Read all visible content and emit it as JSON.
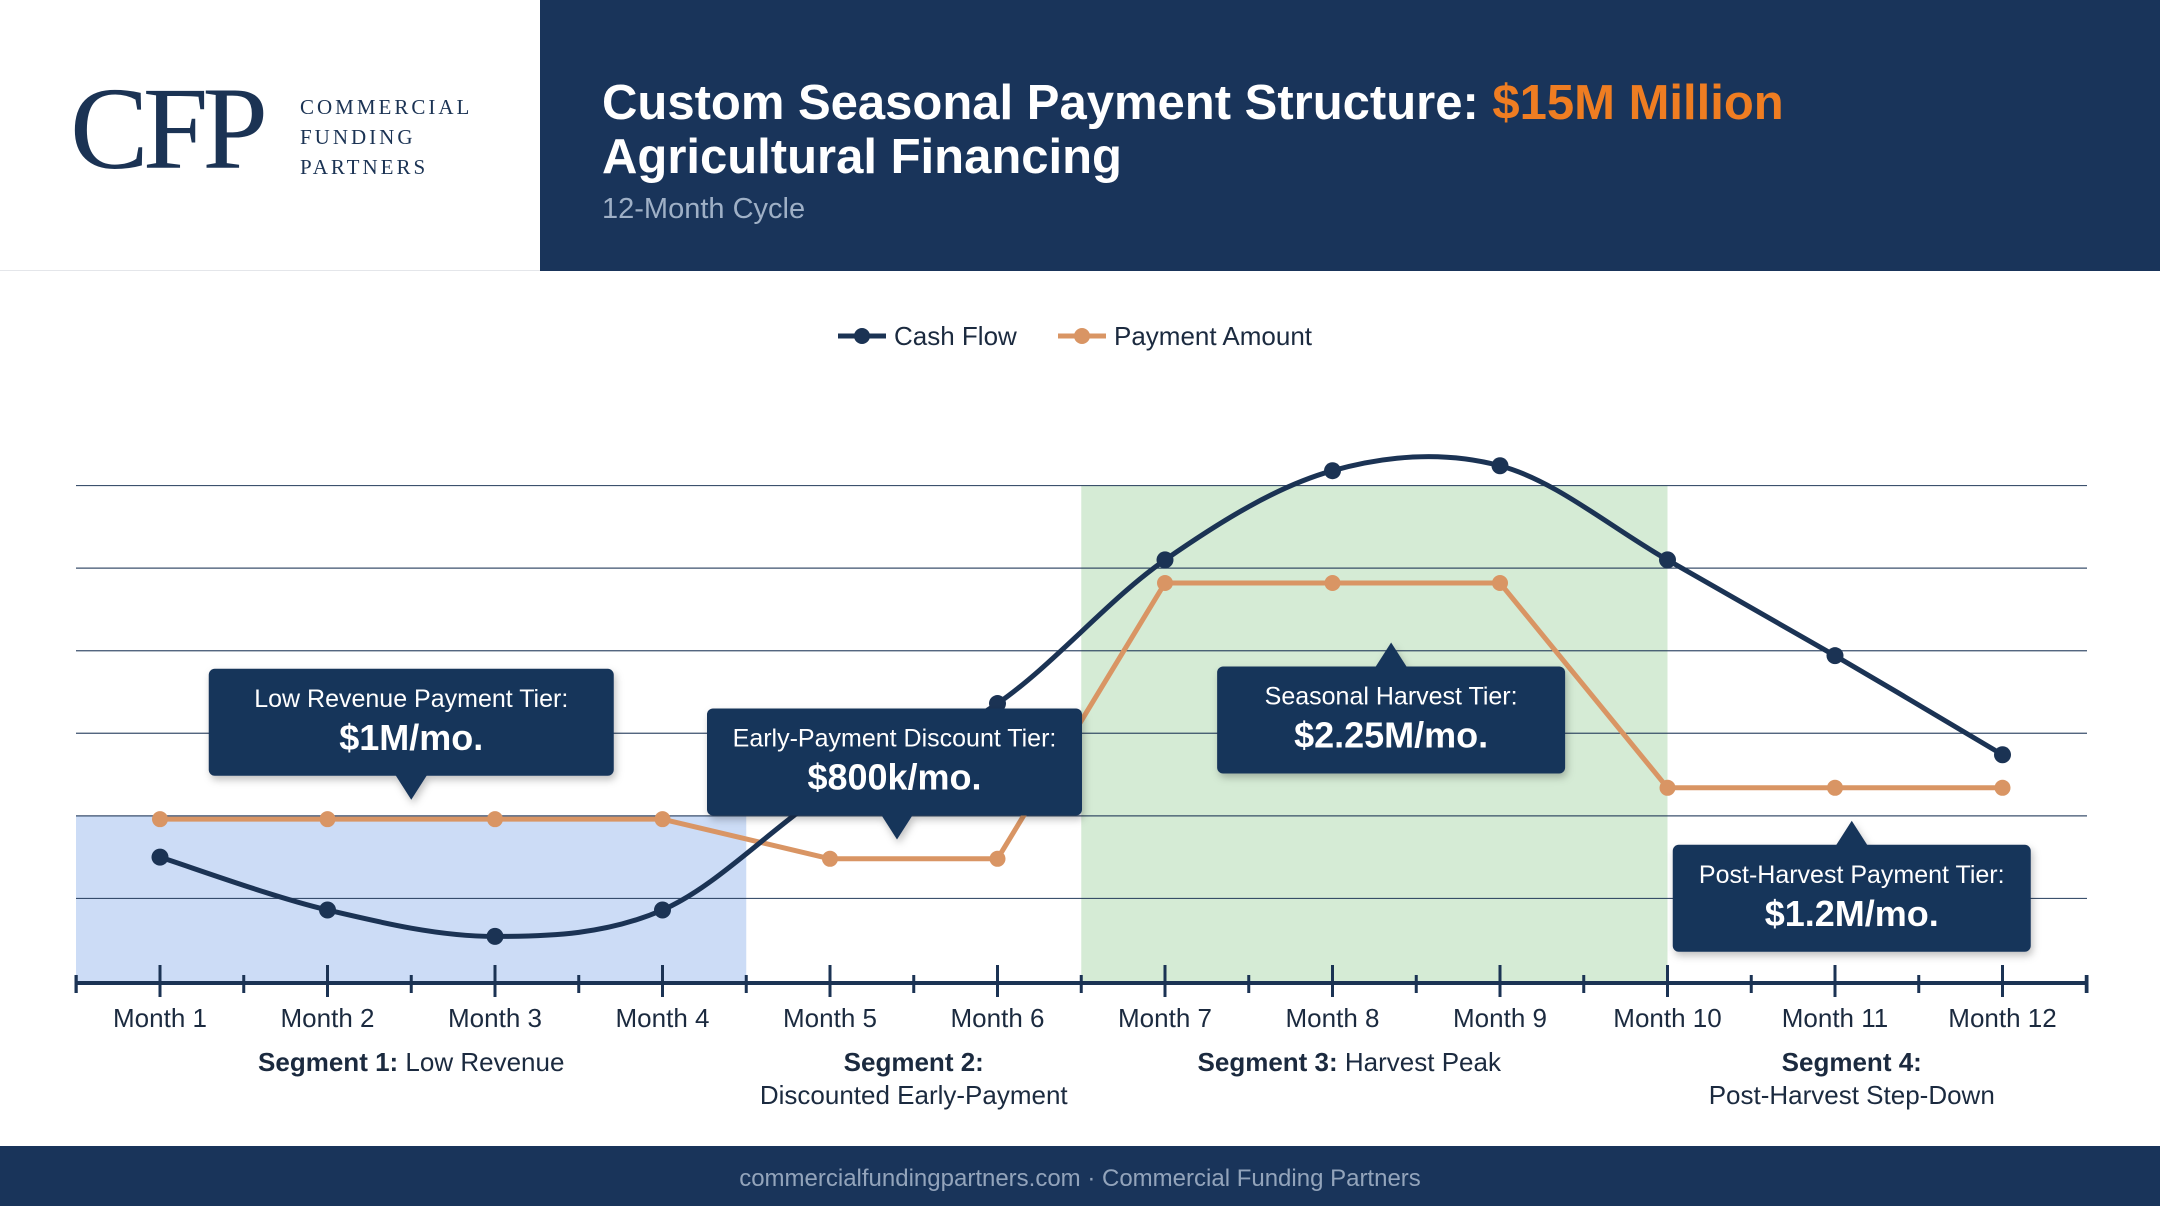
{
  "brand": {
    "monogram": "CFP",
    "name_lines": [
      "COMMERCIAL",
      "FUNDING",
      "PARTNERS"
    ]
  },
  "header": {
    "title_part1": "Custom Seasonal Payment Structure: ",
    "title_accent": "$15M Million",
    "title_part2": "Agricultural Financing",
    "subtitle": "12-Month Cycle"
  },
  "colors": {
    "navy": "#19345a",
    "accent": "#ef7d22",
    "cash_flow": "#1b3354",
    "payment": "#d99564",
    "segment1_band": "#ccdcf6",
    "segment3_band": "#d5ebd5"
  },
  "chart_data": {
    "type": "line",
    "categories": [
      "Month 1",
      "Month 2",
      "Month 3",
      "Month 4",
      "Month 5",
      "Month 6",
      "Month 7",
      "Month 8",
      "Month 9",
      "Month 10",
      "Month 11",
      "Month 12"
    ],
    "series": [
      {
        "name": "Cash Flow",
        "values": [
          1.75,
          1.43,
          1.27,
          1.43,
          null,
          2.68,
          3.55,
          4.09,
          4.12,
          3.55,
          2.97,
          2.37
        ],
        "smooth": true
      },
      {
        "name": "Payment Amount",
        "values": [
          1.98,
          1.98,
          1.98,
          1.98,
          1.74,
          1.74,
          3.41,
          3.41,
          3.41,
          2.17,
          2.17,
          2.17
        ]
      }
    ],
    "ylim": [
      1.0,
      4.5
    ],
    "gridlines": [
      1.0,
      1.5,
      2.0,
      2.5,
      3.0,
      3.5,
      4.0
    ],
    "grid": true,
    "legend": "top-center",
    "bands": [
      {
        "from": 0.5,
        "to": 4.5,
        "top": 2.0,
        "color_key": "segment1_band"
      },
      {
        "from": 6.5,
        "to": 10.0,
        "top": 4.0,
        "color_key": "segment3_band"
      }
    ],
    "segments": [
      {
        "bold": "Segment 1:",
        "text": " Low Revenue",
        "line2": "",
        "center": 2.5
      },
      {
        "bold": "Segment 2:",
        "text": "",
        "line2": "Discounted Early-Payment",
        "center": 5.5
      },
      {
        "bold": "Segment 3:",
        "text": " Harvest Peak",
        "line2": "",
        "center": 8.1
      },
      {
        "bold": "Segment 4:",
        "text": "",
        "line2": "Post-Harvest Step-Down",
        "center": 11.1
      }
    ],
    "callouts": [
      {
        "label": "Low Revenue Payment Tier:",
        "value": "$1M/mo.",
        "pointer": "down",
        "anchor_x": 2.5,
        "anchor_y": 1.97
      },
      {
        "label": "Early-Payment Discount Tier:",
        "value": "$800k/mo.",
        "pointer": "down",
        "anchor_x": 5.4,
        "anchor_y": 1.73
      },
      {
        "label": "Seasonal Harvest Tier:",
        "value": "$2.25M/mo.",
        "pointer": "up",
        "anchor_x": 8.35,
        "anchor_y": 3.05
      },
      {
        "label": "Post-Harvest Payment Tier:",
        "value": "$1.2M/mo.",
        "pointer": "up",
        "anchor_x": 11.1,
        "anchor_y": 1.97
      }
    ]
  },
  "footer": {
    "text": "commercialfundingpartners.com · Commercial Funding Partners"
  }
}
